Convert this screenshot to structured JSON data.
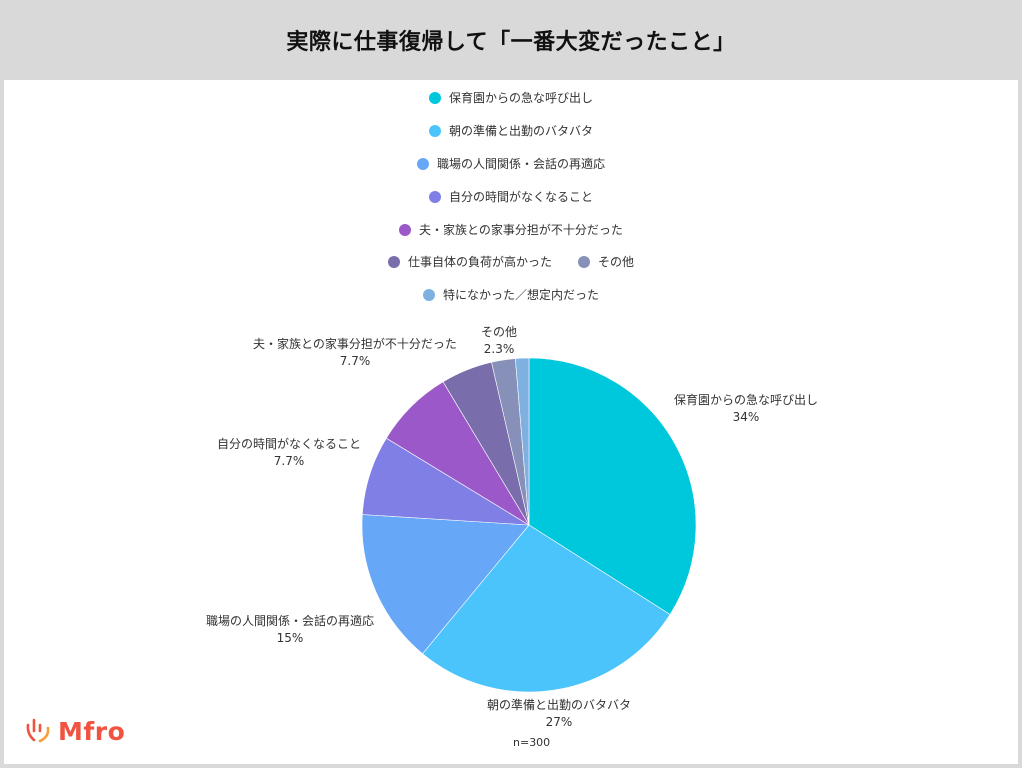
{
  "header": {
    "title": "実際に仕事復帰して「一番大変だったこと」"
  },
  "legend": {
    "rows": [
      [
        {
          "label": "保育園からの急な呼び出し",
          "color": "#00c8dc"
        }
      ],
      [
        {
          "label": "朝の準備と出勤のバタバタ",
          "color": "#4bc3fb"
        }
      ],
      [
        {
          "label": "職場の人間関係・会話の再適応",
          "color": "#66a7f7"
        }
      ],
      [
        {
          "label": "自分の時間がなくなること",
          "color": "#7f7fe6"
        }
      ],
      [
        {
          "label": "夫・家族との家事分担が不十分だった",
          "color": "#9a58c9"
        }
      ],
      [
        {
          "label": "仕事自体の負荷が高かった",
          "color": "#7a6dab"
        },
        {
          "label": "その他",
          "color": "#8690b8"
        }
      ],
      [
        {
          "label": "特になかった／想定内だった",
          "color": "#7eb0e0"
        }
      ]
    ]
  },
  "slice_labels": [
    {
      "name": "保育園からの急な呼び出し",
      "value": "34%"
    },
    {
      "name": "朝の準備と出勤のバタバタ",
      "value": "27%"
    },
    {
      "name": "職場の人間関係・会話の再適応",
      "value": "15%"
    },
    {
      "name": "自分の時間がなくなること",
      "value": "7.7%"
    },
    {
      "name": "夫・家族との家事分担が不十分だった",
      "value": "7.7%"
    },
    {
      "name": "その他",
      "value": "2.3%"
    }
  ],
  "footer": {
    "n_label": "n=300",
    "logo_text": "Mfro"
  },
  "chart_data": {
    "type": "pie",
    "title": "実際に仕事復帰して「一番大変だったこと」",
    "categories": [
      "保育園からの急な呼び出し",
      "朝の準備と出勤のバタバタ",
      "職場の人間関係・会話の再適応",
      "自分の時間がなくなること",
      "夫・家族との家事分担が不十分だった",
      "仕事自体の負荷が高かった",
      "その他",
      "特になかった／想定内だった"
    ],
    "values": [
      34,
      27,
      15,
      7.7,
      7.7,
      5,
      2.3,
      1.3
    ],
    "colors": [
      "#00c8dc",
      "#4bc3fb",
      "#66a7f7",
      "#7f7fe6",
      "#9a58c9",
      "#7a6dab",
      "#8690b8",
      "#7eb0e0"
    ],
    "unit": "%",
    "sample_size": "n=300",
    "legend_position": "top",
    "start_angle": "12 o'clock, clockwise"
  }
}
